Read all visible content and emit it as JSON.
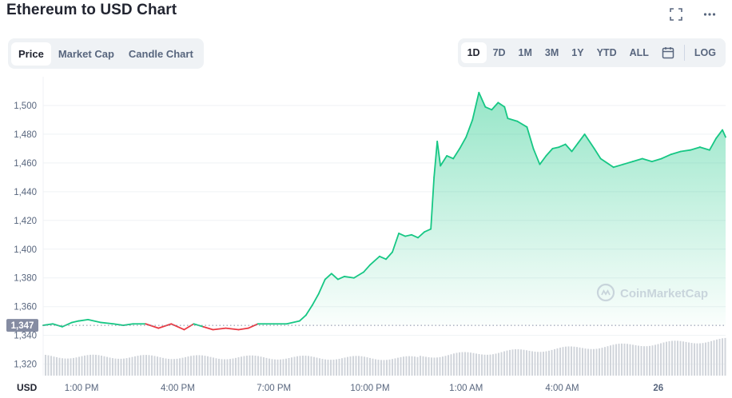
{
  "header": {
    "title": "Ethereum to USD Chart"
  },
  "tabs": [
    {
      "label": "Price",
      "active": true
    },
    {
      "label": "Market Cap",
      "active": false
    },
    {
      "label": "Candle Chart",
      "active": false
    }
  ],
  "ranges": [
    {
      "label": "1D",
      "active": true
    },
    {
      "label": "7D",
      "active": false
    },
    {
      "label": "1M",
      "active": false
    },
    {
      "label": "3M",
      "active": false
    },
    {
      "label": "1Y",
      "active": false
    },
    {
      "label": "YTD",
      "active": false
    },
    {
      "label": "ALL",
      "active": false
    }
  ],
  "log_label": "LOG",
  "watermark": "CoinMarketCap",
  "colors": {
    "up": "#16c784",
    "down": "#ea3943",
    "grid": "#eff2f5",
    "axis_text": "#58667e",
    "volume": "#d1d5db"
  },
  "chart_data": {
    "type": "line",
    "title": "Ethereum to USD Chart",
    "currency_label": "USD",
    "ylim": [
      1312,
      1520
    ],
    "yticks": [
      1320,
      1340,
      1360,
      1380,
      1400,
      1420,
      1440,
      1460,
      1480,
      1500
    ],
    "ytick_labels": [
      "1,320",
      "1,340",
      "1,360",
      "1,380",
      "1,400",
      "1,420",
      "1,440",
      "1,460",
      "1,480",
      "1,500"
    ],
    "xticks": [
      "1:00 PM",
      "4:00 PM",
      "7:00 PM",
      "10:00 PM",
      "1:00 AM",
      "4:00 AM",
      "26"
    ],
    "xtick_hours": [
      1,
      4,
      7,
      10,
      13,
      16,
      19
    ],
    "x_hours_range": [
      -0.2,
      21.1
    ],
    "reference_price": 1347,
    "reference_label": "1,347",
    "grid": true,
    "legend": "none",
    "series": [
      {
        "x": [
          -0.2,
          0.1,
          0.4,
          0.7,
          0.9,
          1.2,
          1.6,
          2.0,
          2.3,
          2.6,
          3.0,
          3.4,
          3.8,
          4.2,
          4.5,
          4.8,
          5.1,
          5.5,
          5.9,
          6.2,
          6.5,
          6.7,
          7.0,
          7.4,
          7.8,
          8.0,
          8.2,
          8.4,
          8.6,
          8.8,
          9.0,
          9.2,
          9.5,
          9.8,
          10.0,
          10.3,
          10.5,
          10.7,
          10.9,
          11.1,
          11.3,
          11.5,
          11.7,
          11.9,
          12.0,
          12.1,
          12.2,
          12.4,
          12.6,
          12.8,
          13.0,
          13.2,
          13.4,
          13.6,
          13.8,
          14.0,
          14.2,
          14.3,
          14.6,
          14.9,
          15.1,
          15.3,
          15.5,
          15.7,
          15.9,
          16.1,
          16.3,
          16.5,
          16.7,
          17.0,
          17.2,
          17.4,
          17.6,
          17.9,
          18.2,
          18.5,
          18.8,
          19.1,
          19.4,
          19.7,
          20.0,
          20.3,
          20.6,
          20.8,
          21.0,
          21.1
        ],
        "y": [
          1347,
          1348,
          1346,
          1349,
          1350,
          1351,
          1349,
          1348,
          1347,
          1348,
          1348,
          1345,
          1348,
          1344,
          1348,
          1346,
          1344,
          1345,
          1344,
          1345,
          1348,
          1348,
          1348,
          1348,
          1350,
          1354,
          1361,
          1369,
          1379,
          1383,
          1379,
          1381,
          1380,
          1384,
          1389,
          1395,
          1393,
          1398,
          1411,
          1409,
          1410,
          1408,
          1412,
          1414,
          1450,
          1475,
          1458,
          1465,
          1463,
          1470,
          1478,
          1490,
          1509,
          1499,
          1497,
          1502,
          1499,
          1491,
          1489,
          1485,
          1470,
          1459,
          1465,
          1470,
          1471,
          1473,
          1468,
          1474,
          1480,
          1470,
          1463,
          1460,
          1457,
          1459,
          1461,
          1463,
          1461,
          1463,
          1466,
          1468,
          1469,
          1471,
          1469,
          1477,
          1483,
          1478
        ]
      }
    ]
  }
}
